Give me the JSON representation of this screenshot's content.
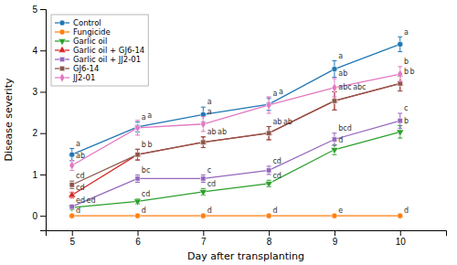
{
  "chart_data": {
    "type": "line",
    "xlabel": "Day after transplanting",
    "ylabel": "Disease severity",
    "x": [
      5,
      6,
      7,
      8,
      9,
      10
    ],
    "xlim": [
      4.6,
      10.7
    ],
    "ylim": [
      -0.35,
      5.0
    ],
    "xticks": [
      5,
      6,
      7,
      8,
      9,
      10
    ],
    "yticks": [
      0,
      1,
      2,
      3,
      4,
      5
    ],
    "grid": false,
    "legend": "upper left",
    "series": [
      {
        "name": "Control",
        "marker": "circle",
        "values": [
          1.48,
          2.15,
          2.45,
          2.7,
          3.55,
          4.15
        ],
        "errors": [
          0.15,
          0.12,
          0.18,
          0.15,
          0.2,
          0.18
        ],
        "annotations": [
          "a",
          "a",
          "a",
          "a",
          "a",
          "a"
        ]
      },
      {
        "name": "Fungicide",
        "marker": "circle",
        "values": [
          0.0,
          0.0,
          0.0,
          0.0,
          0.0,
          0.0
        ],
        "errors": [
          0.0,
          0.0,
          0.0,
          0.0,
          0.0,
          0.0
        ],
        "annotations": [
          "d",
          "d",
          "d",
          "d",
          "e",
          "d"
        ]
      },
      {
        "name": "Garlic oil",
        "marker": "triangle-down",
        "values": [
          0.2,
          0.35,
          0.58,
          0.78,
          1.6,
          2.03
        ],
        "errors": [
          0.05,
          0.06,
          0.08,
          0.08,
          0.12,
          0.15
        ],
        "annotations": [
          "ed",
          "cd",
          "cd",
          "cd",
          "d",
          "b"
        ]
      },
      {
        "name": "Garlic oil + GJ6-14",
        "marker": "triangle-up",
        "values": [
          0.5,
          1.48,
          1.78,
          2.0,
          2.78,
          3.2
        ],
        "errors": [
          0.07,
          0.13,
          0.13,
          0.16,
          0.22,
          0.18
        ],
        "annotations": [
          "cd",
          "b",
          "ab",
          "ab",
          "abc",
          "b"
        ]
      },
      {
        "name": "Garlic oil + JJ2-01",
        "marker": "square",
        "values": [
          0.22,
          0.9,
          0.9,
          1.1,
          1.85,
          2.3
        ],
        "errors": [
          0.04,
          0.09,
          0.09,
          0.1,
          0.15,
          0.18
        ],
        "annotations": [
          "ed",
          "bc",
          "c",
          "cd",
          "bcd",
          "c"
        ]
      },
      {
        "name": "GJ6-14",
        "marker": "square",
        "values": [
          0.75,
          1.48,
          1.78,
          2.0,
          2.78,
          3.2
        ],
        "errors": [
          0.09,
          0.13,
          0.13,
          0.16,
          0.22,
          0.18
        ],
        "annotations": [
          "cd",
          "b",
          "ab",
          "ab",
          "abc",
          "b"
        ]
      },
      {
        "name": "JJ2-01",
        "marker": "diamond",
        "values": [
          1.22,
          2.13,
          2.22,
          2.68,
          3.1,
          3.43
        ],
        "errors": [
          0.12,
          0.18,
          0.18,
          0.2,
          0.22,
          0.18
        ],
        "annotations": [
          "ab",
          "a",
          "a",
          "a",
          "ab",
          "b"
        ]
      }
    ]
  }
}
